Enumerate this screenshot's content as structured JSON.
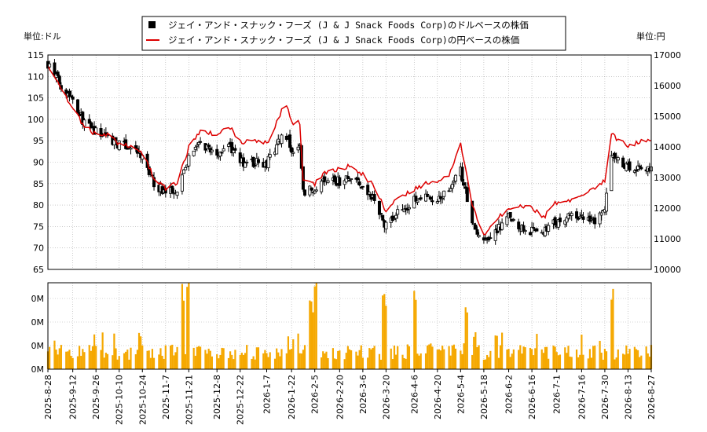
{
  "legend": {
    "usd_label": "ジェイ・アンド・スナック・フーズ (J & J Snack Foods Corp)のドルベースの株価",
    "jpy_label": "ジェイ・アンド・スナック・フーズ (J & J Snack Foods Corp)の円ベースの株価"
  },
  "units": {
    "left": "単位:ドル",
    "right": "単位:円"
  },
  "colors": {
    "candle_up": "#ffffff",
    "candle_down": "#000000",
    "jpy_line": "#dd0000",
    "volume": "#f5a800",
    "grid": "#aaaaaa"
  },
  "chart_data": [
    {
      "type": "line",
      "subtype": "candlestick-with-overlay",
      "x_axis": {
        "tick_labels": [
          "2025-8-28",
          "2025-9-12",
          "2025-9-26",
          "2025-10-10",
          "2025-10-24",
          "2025-11-7",
          "2025-11-21",
          "2025-12-8",
          "2025-12-22",
          "2026-1-7",
          "2026-1-22",
          "2026-2-5",
          "2026-2-20",
          "2026-3-6",
          "2026-3-20",
          "2026-4-6",
          "2026-4-20",
          "2026-5-4",
          "2026-5-18",
          "2026-6-2",
          "2026-6-16",
          "2026-7-1",
          "2026-7-16",
          "2026-7-30",
          "2026-8-13",
          "2026-8-27"
        ]
      },
      "y_left": {
        "ylim": [
          65,
          115
        ],
        "ticks": [
          "65",
          "70",
          "75",
          "80",
          "85",
          "90",
          "95",
          "100",
          "105",
          "110",
          "115"
        ]
      },
      "y_right": {
        "ylim": [
          10000,
          17000
        ],
        "ticks": [
          "10000",
          "11000",
          "12000",
          "13000",
          "14000",
          "15000",
          "16000",
          "17000"
        ]
      },
      "grid": true,
      "legend_position": "top-center",
      "usd_close_keypoints": [
        [
          "2025-08-28",
          113
        ],
        [
          "2025-09-05",
          108
        ],
        [
          "2025-09-12",
          105
        ],
        [
          "2025-09-19",
          99
        ],
        [
          "2025-09-26",
          97
        ],
        [
          "2025-10-03",
          96
        ],
        [
          "2025-10-10",
          94
        ],
        [
          "2025-10-17",
          93.5
        ],
        [
          "2025-10-24",
          91
        ],
        [
          "2025-10-31",
          85
        ],
        [
          "2025-11-07",
          83
        ],
        [
          "2025-11-14",
          84
        ],
        [
          "2025-11-21",
          91
        ],
        [
          "2025-11-28",
          94
        ],
        [
          "2025-12-08",
          92
        ],
        [
          "2025-12-15",
          94
        ],
        [
          "2025-12-22",
          90
        ],
        [
          "2026-01-01",
          90
        ],
        [
          "2026-01-07",
          89.5
        ],
        [
          "2026-01-14",
          95
        ],
        [
          "2026-01-18",
          97
        ],
        [
          "2026-01-22",
          93
        ],
        [
          "2026-01-27",
          95
        ],
        [
          "2026-01-29",
          83
        ],
        [
          "2026-02-05",
          84
        ],
        [
          "2026-02-12",
          86
        ],
        [
          "2026-02-20",
          85.5
        ],
        [
          "2026-02-27",
          86
        ],
        [
          "2026-03-06",
          84
        ],
        [
          "2026-03-13",
          81
        ],
        [
          "2026-03-20",
          75
        ],
        [
          "2026-03-27",
          78
        ],
        [
          "2026-04-06",
          81
        ],
        [
          "2026-04-13",
          82
        ],
        [
          "2026-04-20",
          81
        ],
        [
          "2026-04-27",
          84
        ],
        [
          "2026-05-04",
          88
        ],
        [
          "2026-05-11",
          76
        ],
        [
          "2026-05-18",
          71
        ],
        [
          "2026-05-25",
          74
        ],
        [
          "2026-06-02",
          77
        ],
        [
          "2026-06-09",
          75
        ],
        [
          "2026-06-16",
          74
        ],
        [
          "2026-06-23",
          74
        ],
        [
          "2026-07-01",
          76
        ],
        [
          "2026-07-08",
          77
        ],
        [
          "2026-07-16",
          77
        ],
        [
          "2026-07-23",
          76
        ],
        [
          "2026-07-30",
          79
        ],
        [
          "2026-08-03",
          91
        ],
        [
          "2026-08-13",
          89
        ],
        [
          "2026-08-20",
          89
        ],
        [
          "2026-08-27",
          88
        ]
      ],
      "jpy_close_keypoints": [
        [
          "2025-08-28",
          16600
        ],
        [
          "2025-09-05",
          15900
        ],
        [
          "2025-09-12",
          15200
        ],
        [
          "2025-09-19",
          14700
        ],
        [
          "2025-09-26",
          14400
        ],
        [
          "2025-10-03",
          14400
        ],
        [
          "2025-10-10",
          14100
        ],
        [
          "2025-10-17",
          14000
        ],
        [
          "2025-10-24",
          13800
        ],
        [
          "2025-10-31",
          13000
        ],
        [
          "2025-11-07",
          12650
        ],
        [
          "2025-11-14",
          12800
        ],
        [
          "2025-11-21",
          14000
        ],
        [
          "2025-11-28",
          14500
        ],
        [
          "2025-12-08",
          14400
        ],
        [
          "2025-12-15",
          14700
        ],
        [
          "2025-12-22",
          14150
        ],
        [
          "2026-01-01",
          14200
        ],
        [
          "2026-01-07",
          14100
        ],
        [
          "2026-01-14",
          14900
        ],
        [
          "2026-01-18",
          15500
        ],
        [
          "2026-01-22",
          14800
        ],
        [
          "2026-01-27",
          14800
        ],
        [
          "2026-01-29",
          12900
        ],
        [
          "2026-02-05",
          12800
        ],
        [
          "2026-02-12",
          13200
        ],
        [
          "2026-02-20",
          13300
        ],
        [
          "2026-02-27",
          13400
        ],
        [
          "2026-03-06",
          13100
        ],
        [
          "2026-03-13",
          12700
        ],
        [
          "2026-03-20",
          11900
        ],
        [
          "2026-03-27",
          12300
        ],
        [
          "2026-04-06",
          12600
        ],
        [
          "2026-04-13",
          12800
        ],
        [
          "2026-04-20",
          12800
        ],
        [
          "2026-04-27",
          13100
        ],
        [
          "2026-05-04",
          14100
        ],
        [
          "2026-05-11",
          12100
        ],
        [
          "2026-05-18",
          11100
        ],
        [
          "2026-05-25",
          11600
        ],
        [
          "2026-06-02",
          12000
        ],
        [
          "2026-06-09",
          12100
        ],
        [
          "2026-06-16",
          12000
        ],
        [
          "2026-06-23",
          11700
        ],
        [
          "2026-07-01",
          12200
        ],
        [
          "2026-07-08",
          12200
        ],
        [
          "2026-07-16",
          12400
        ],
        [
          "2026-07-23",
          12600
        ],
        [
          "2026-07-30",
          12900
        ],
        [
          "2026-08-03",
          14400
        ],
        [
          "2026-08-13",
          14000
        ],
        [
          "2026-08-20",
          14200
        ],
        [
          "2026-08-27",
          14200
        ]
      ]
    },
    {
      "type": "bar",
      "name": "volume",
      "y_ticks": [
        "0M",
        "0M",
        "0M",
        "0M"
      ],
      "grid": true,
      "spike_dates": [
        "2025-11-17",
        "2025-11-21",
        "2026-02-03",
        "2026-02-05",
        "2026-03-19",
        "2026-04-06",
        "2026-05-08",
        "2026-08-03"
      ]
    }
  ]
}
